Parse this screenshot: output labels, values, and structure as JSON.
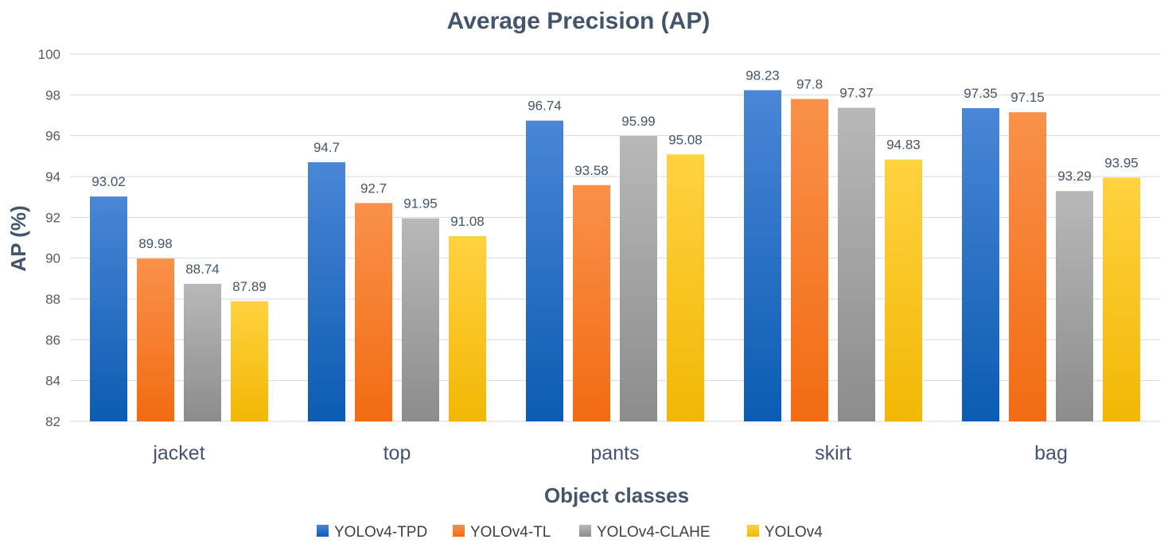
{
  "chart_data": {
    "type": "bar",
    "title": "Average Precision (AP)",
    "xlabel": "Object classes",
    "ylabel": "AP (%)",
    "ylim": [
      82,
      100
    ],
    "yticks": [
      82,
      84,
      86,
      88,
      90,
      92,
      94,
      96,
      98,
      100
    ],
    "ytick_labels": [
      "82",
      "84",
      "86",
      "88",
      "90",
      "92",
      "94",
      "96",
      "98",
      "100"
    ],
    "grid": true,
    "legend_position": "bottom-center",
    "categories": [
      "jacket",
      "top",
      "pants",
      "skirt",
      "bag"
    ],
    "series": [
      {
        "name": "YOLOv4-TPD",
        "color_light": "#4a86d6",
        "color_dark": "#0b5cb3",
        "values": [
          93.02,
          94.7,
          96.74,
          98.23,
          97.35
        ],
        "labels": [
          "93.02",
          "94.7",
          "96.74",
          "98.23",
          "97.35"
        ]
      },
      {
        "name": "YOLOv4-TL",
        "color_light": "#f9914a",
        "color_dark": "#f26b12",
        "values": [
          89.98,
          92.7,
          93.58,
          97.8,
          97.15
        ],
        "labels": [
          "89.98",
          "92.7",
          "93.58",
          "97.8",
          "97.15"
        ]
      },
      {
        "name": "YOLOv4-CLAHE",
        "color_light": "#b8b8b8",
        "color_dark": "#8c8c8c",
        "values": [
          88.74,
          91.95,
          95.99,
          97.37,
          93.29
        ],
        "labels": [
          "88.74",
          "91.95",
          "95.99",
          "97.37",
          "93.29"
        ]
      },
      {
        "name": "YOLOv4",
        "color_light": "#ffd23f",
        "color_dark": "#f2b705",
        "values": [
          87.89,
          91.08,
          95.08,
          94.83,
          93.95
        ],
        "labels": [
          "87.89",
          "91.08",
          "95.08",
          "94.83",
          "93.95"
        ]
      }
    ]
  }
}
